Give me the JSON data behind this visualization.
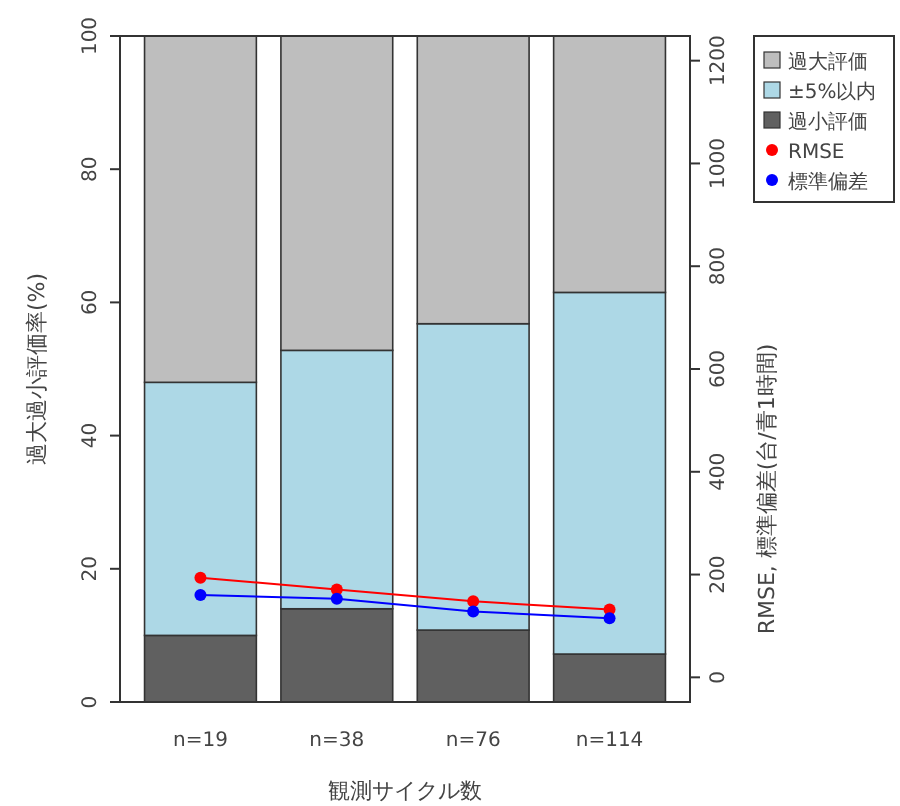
{
  "chart_data": {
    "type": "bar",
    "stacked": true,
    "xlabel": "観測サイクル数",
    "ylabel": "過大過小評価率(%)",
    "y2label": "RMSE, 標準偏差(台/青1時間)",
    "categories": [
      "n=19",
      "n=38",
      "n=76",
      "n=114"
    ],
    "series": [
      {
        "name": "過小評価",
        "color": "#606060",
        "values": [
          10,
          14,
          10.8,
          7.2
        ]
      },
      {
        "name": "±5%以内",
        "color": "#add8e6",
        "values": [
          38,
          38.8,
          46,
          54.3
        ]
      },
      {
        "name": "過大評価",
        "color": "#bebebe",
        "values": [
          52,
          47.2,
          43.2,
          38.5
        ]
      },
      {
        "name": "RMSE",
        "type": "line",
        "axis": "y2",
        "color": "#ff0000",
        "values": [
          194,
          171,
          148,
          132
        ]
      },
      {
        "name": "標準偏差",
        "type": "line",
        "axis": "y2",
        "color": "#0000ff",
        "values": [
          160,
          153,
          128,
          115
        ]
      }
    ],
    "ylim": [
      0,
      100
    ],
    "yticks": [
      0,
      20,
      40,
      60,
      80,
      100
    ],
    "y2lim": [
      -48,
      1248
    ],
    "y2ticks": [
      0,
      200,
      400,
      600,
      800,
      1000,
      1200
    ],
    "marker": "circle",
    "legend": "top right",
    "grid": false
  }
}
